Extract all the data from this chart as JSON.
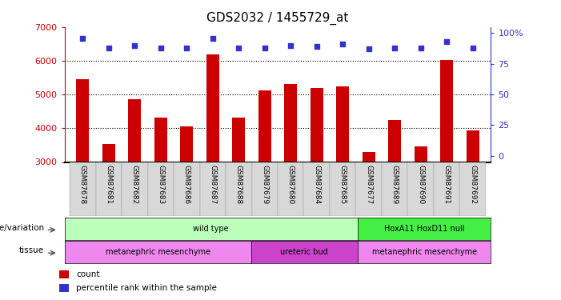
{
  "title": "GDS2032 / 1455729_at",
  "samples": [
    "GSM87678",
    "GSM87681",
    "GSM87682",
    "GSM87683",
    "GSM87686",
    "GSM87687",
    "GSM87688",
    "GSM87679",
    "GSM87680",
    "GSM87684",
    "GSM87685",
    "GSM87677",
    "GSM87689",
    "GSM87690",
    "GSM87691",
    "GSM87692"
  ],
  "counts": [
    5450,
    3530,
    4870,
    4320,
    4050,
    6200,
    4320,
    5130,
    5300,
    5200,
    5250,
    3290,
    4250,
    3460,
    6020,
    3940
  ],
  "percentiles": [
    96,
    88,
    90,
    88,
    88,
    96,
    88,
    88,
    90,
    89,
    91,
    87,
    88,
    88,
    93,
    88
  ],
  "ymin": 3000,
  "ymax": 7000,
  "yticks": [
    3000,
    4000,
    5000,
    6000,
    7000
  ],
  "y2ticks": [
    0,
    25,
    50,
    75,
    100
  ],
  "bar_color": "#cc0000",
  "dot_color": "#3333cc",
  "bg_color": "#ffffff",
  "tick_area_color": "#d8d8d8",
  "genotype_row": {
    "label": "genotype/variation",
    "groups": [
      {
        "text": "wild type",
        "start": 0,
        "end": 11,
        "color": "#bbffbb"
      },
      {
        "text": "HoxA11 HoxD11 null",
        "start": 11,
        "end": 16,
        "color": "#44ee44"
      }
    ]
  },
  "tissue_row": {
    "label": "tissue",
    "groups": [
      {
        "text": "metanephric mesenchyme",
        "start": 0,
        "end": 7,
        "color": "#ee88ee"
      },
      {
        "text": "ureteric bud",
        "start": 7,
        "end": 11,
        "color": "#cc44cc"
      },
      {
        "text": "metanephric mesenchyme",
        "start": 11,
        "end": 16,
        "color": "#ee88ee"
      }
    ]
  },
  "legend": [
    {
      "color": "#cc0000",
      "label": "count"
    },
    {
      "color": "#3333cc",
      "label": "percentile rank within the sample"
    }
  ]
}
